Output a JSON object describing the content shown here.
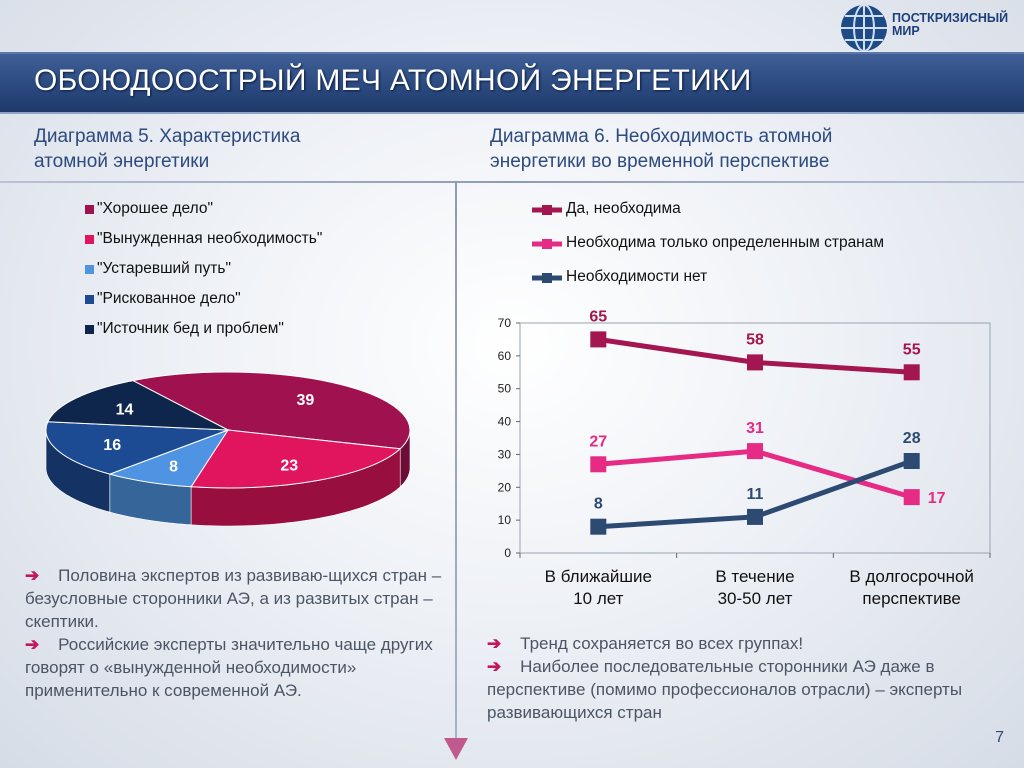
{
  "logo": {
    "line1": "ПОСТКРИЗИСНЫЙ",
    "line2": "МИР"
  },
  "title": "ОБОЮДООСТРЫЙ МЕЧ АТОМНОЙ ЭНЕРГЕТИКИ",
  "left_heading": {
    "line1": "Диаграмма 5. Характеристика",
    "line2": "атомной энергетики"
  },
  "right_heading": {
    "line1": "Диаграмма 6. Необходимость атомной",
    "line2": "энергетики во временной перспективе"
  },
  "colors": {
    "good_deal": "#a0124f",
    "forced_need": "#e0155d",
    "outdated": "#4f94e3",
    "risky": "#1d4b93",
    "source_problems": "#0f264c",
    "yes_needed": "#a3164f",
    "only_certain": "#e62b85",
    "not_needed": "#2c4a72"
  },
  "chart_data": [
    {
      "type": "pie",
      "legend_position": "top",
      "slices": [
        {
          "label": "\"Хорошее дело\"",
          "value": 39,
          "color": "#a0124f"
        },
        {
          "label": "\"Вынужденная необходимость\"",
          "value": 23,
          "color": "#e0155d"
        },
        {
          "label": "\"Устаревший путь\"",
          "value": 8,
          "color": "#4f94e3"
        },
        {
          "label": "\"Рискованное дело\"",
          "value": 16,
          "color": "#1d4b93"
        },
        {
          "label": "\"Источник бед и проблем\"",
          "value": 14,
          "color": "#0f264c"
        }
      ]
    },
    {
      "type": "line",
      "legend_position": "top",
      "categories": [
        "В ближайшие 10 лет",
        "В течение 30-50 лет",
        "В долгосрочной перспективе"
      ],
      "category_lines": [
        [
          "В ближайшие",
          "10 лет"
        ],
        [
          "В течение",
          "30-50 лет"
        ],
        [
          "В долгосрочной",
          "перспективе"
        ]
      ],
      "ylim": [
        0,
        70
      ],
      "yticks": [
        "0",
        "10",
        "20",
        "30",
        "40",
        "50",
        "60",
        "70"
      ],
      "grid": false,
      "series": [
        {
          "name": "Да, необходима",
          "values": [
            65,
            58,
            55
          ],
          "color": "#a3164f"
        },
        {
          "name": "Необходима только определенным странам",
          "values": [
            27,
            31,
            17
          ],
          "color": "#e62b85"
        },
        {
          "name": "Необходимости нет",
          "values": [
            8,
            11,
            28
          ],
          "color": "#2c4a72"
        }
      ]
    }
  ],
  "notes_left": [
    {
      "arrow": "➔",
      "text": "Половина экспертов из развиваю-щихся стран – безусловные сторонники АЭ, а из развитых стран – скептики."
    },
    {
      "arrow": "➔",
      "text": "Российские эксперты значительно чаще других говорят о «вынужденной необходимости» применительно к современной АЭ."
    }
  ],
  "notes_right": [
    {
      "arrow": "➔",
      "text": "Тренд сохраняется во всех группах!"
    },
    {
      "arrow": "➔",
      "text": "Наиболее последовательные сторонники АЭ даже в перспективе (помимо профессионалов отрасли) – эксперты развивающихся стран"
    }
  ],
  "page_number": "7"
}
